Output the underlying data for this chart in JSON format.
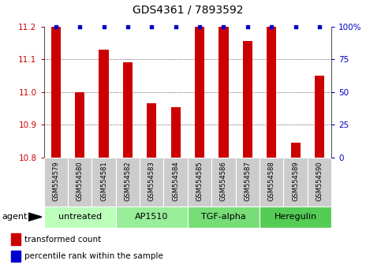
{
  "title": "GDS4361 / 7893592",
  "samples": [
    "GSM554579",
    "GSM554580",
    "GSM554581",
    "GSM554582",
    "GSM554583",
    "GSM554584",
    "GSM554585",
    "GSM554586",
    "GSM554587",
    "GSM554588",
    "GSM554589",
    "GSM554590"
  ],
  "bar_values": [
    11.2,
    11.0,
    11.13,
    11.09,
    10.965,
    10.955,
    11.2,
    11.2,
    11.155,
    11.2,
    10.845,
    11.05
  ],
  "percentile_values": [
    100,
    100,
    100,
    100,
    100,
    100,
    100,
    100,
    100,
    100,
    100,
    100
  ],
  "bar_color": "#cc0000",
  "dot_color": "#0000cc",
  "ylim_left": [
    10.8,
    11.2
  ],
  "ylim_right": [
    0,
    100
  ],
  "yticks_left": [
    10.8,
    10.9,
    11.0,
    11.1,
    11.2
  ],
  "yticks_right": [
    0,
    25,
    50,
    75,
    100
  ],
  "ytick_labels_right": [
    "0",
    "25",
    "50",
    "75",
    "100%"
  ],
  "grid_yticks": [
    10.9,
    11.0,
    11.1
  ],
  "groups": [
    {
      "label": "untreated",
      "start": 0,
      "end": 3,
      "color": "#bbffbb"
    },
    {
      "label": "AP1510",
      "start": 3,
      "end": 6,
      "color": "#99ee99"
    },
    {
      "label": "TGF-alpha",
      "start": 6,
      "end": 9,
      "color": "#77dd77"
    },
    {
      "label": "Heregulin",
      "start": 9,
      "end": 12,
      "color": "#55cc55"
    }
  ],
  "agent_label": "agent",
  "legend_red_label": "transformed count",
  "legend_blue_label": "percentile rank within the sample",
  "background_color": "#ffffff",
  "sample_box_color": "#cccccc",
  "tick_label_color_left": "#cc0000",
  "tick_label_color_right": "#0000cc",
  "bar_width": 0.4,
  "title_fontsize": 10,
  "axis_fontsize": 7.5,
  "sample_fontsize": 6.0,
  "group_fontsize": 8,
  "legend_fontsize": 7.5
}
